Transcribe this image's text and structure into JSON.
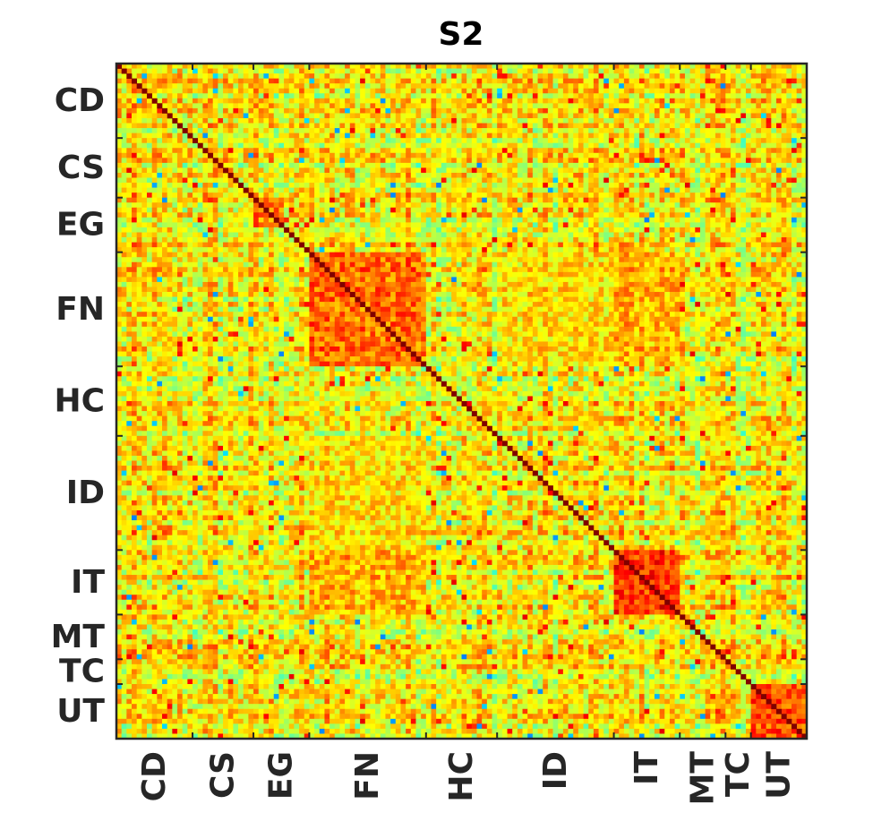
{
  "chart_data": {
    "type": "heatmap",
    "title": "S2",
    "xlabel": "",
    "ylabel": "",
    "grid": false,
    "colormap": "jet",
    "colors": {
      "diagonal": "#800000",
      "frame": "#262626",
      "low": "#0000ff",
      "mid": "#80ff80",
      "high": "#ff0000"
    },
    "categories": [
      "CD",
      "CS",
      "EG",
      "FN",
      "HC",
      "ID",
      "IT",
      "MT",
      "TC",
      "UT"
    ],
    "category_ranges": [
      {
        "label": "CD",
        "start": 0,
        "end": 15
      },
      {
        "label": "CS",
        "start": 15,
        "end": 27
      },
      {
        "label": "EG",
        "start": 27,
        "end": 38
      },
      {
        "label": "FN",
        "start": 38,
        "end": 61
      },
      {
        "label": "HC",
        "start": 61,
        "end": 75
      },
      {
        "label": "ID",
        "start": 75,
        "end": 98
      },
      {
        "label": "IT",
        "start": 98,
        "end": 111
      },
      {
        "label": "MT",
        "start": 111,
        "end": 120
      },
      {
        "label": "TC",
        "start": 120,
        "end": 125
      },
      {
        "label": "UT",
        "start": 125,
        "end": 136
      }
    ],
    "matrix_size": 136,
    "value_range": [
      0,
      1
    ],
    "blocks": [
      {
        "rows": [
          38,
          61
        ],
        "cols": [
          38,
          61
        ],
        "level": 0.82,
        "note": "FN within-group"
      },
      {
        "rows": [
          98,
          111
        ],
        "cols": [
          98,
          111
        ],
        "level": 0.9,
        "note": "IT within-group"
      },
      {
        "rows": [
          125,
          136
        ],
        "cols": [
          125,
          136
        ],
        "level": 0.85,
        "note": "UT within-group"
      },
      {
        "rows": [
          27,
          33
        ],
        "cols": [
          27,
          33
        ],
        "level": 0.8,
        "note": "EG within-group"
      },
      {
        "rows": [
          19,
          23
        ],
        "cols": [
          19,
          23
        ],
        "level": 0.72,
        "note": "CS within-group"
      },
      {
        "rows": [
          38,
          61
        ],
        "cols": [
          98,
          111
        ],
        "level": 0.72,
        "note": "FN-IT"
      },
      {
        "rows": [
          98,
          111
        ],
        "cols": [
          38,
          61
        ],
        "level": 0.72,
        "note": "IT-FN"
      },
      {
        "rows": [
          38,
          61
        ],
        "cols": [
          75,
          98
        ],
        "level": 0.66,
        "note": "FN-ID"
      },
      {
        "rows": [
          75,
          98
        ],
        "cols": [
          38,
          61
        ],
        "level": 0.66,
        "note": "ID-FN"
      }
    ]
  }
}
